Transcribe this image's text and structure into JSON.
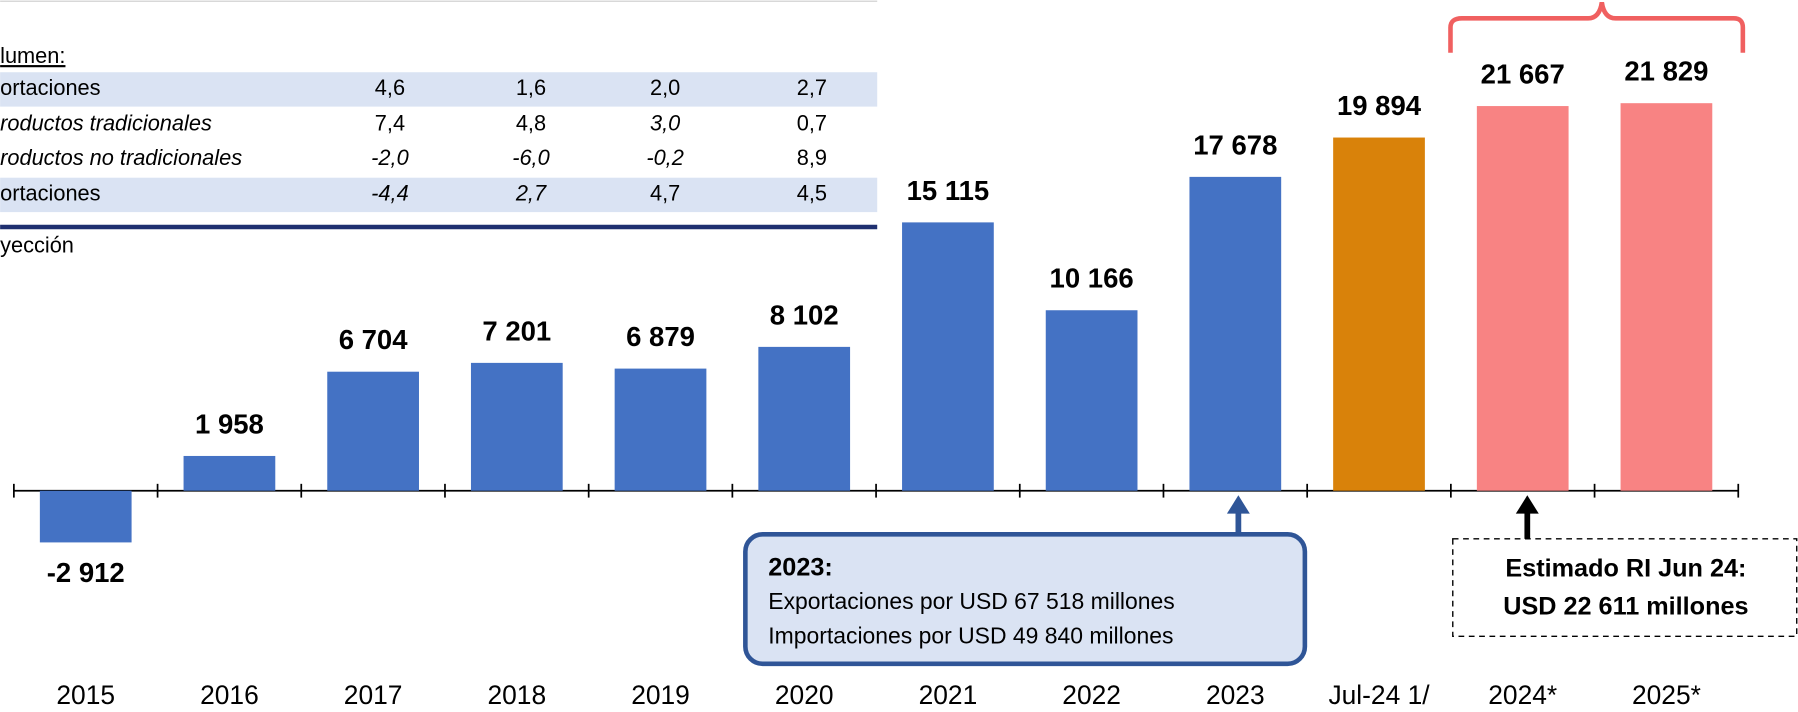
{
  "chart_data": {
    "type": "bar",
    "categories": [
      "2015",
      "2016",
      "2017",
      "2018",
      "2019",
      "2020",
      "2021",
      "2022",
      "2023",
      "Jul-24 1/",
      "2024*",
      "2025*"
    ],
    "values": [
      -2912,
      1958,
      6704,
      7201,
      6879,
      8102,
      15115,
      10166,
      17678,
      19894,
      21667,
      21829
    ],
    "value_labels": [
      "-2 912",
      "1 958",
      "6 704",
      "7 201",
      "6 879",
      "8 102",
      "15 115",
      "10 166",
      "17 678",
      "19 894",
      "21 667",
      "21 829"
    ],
    "colors": [
      "#4472c4",
      "#4472c4",
      "#4472c4",
      "#4472c4",
      "#4472c4",
      "#4472c4",
      "#4472c4",
      "#4472c4",
      "#4472c4",
      "#d9820a",
      "#f88383",
      "#f88383"
    ],
    "annotations": [
      {
        "title": "2023:",
        "lines": [
          "Exportaciones por USD 67 518 millones",
          "Importaciones por USD 49 840  millones"
        ]
      },
      {
        "lines": [
          "Estimado RI Jun 24:",
          "USD 22 611 millones"
        ]
      }
    ]
  },
  "table": {
    "heading": "lumen:",
    "rows": [
      [
        "ortaciones",
        "4,6",
        "1,6",
        "2,0",
        "2,7"
      ],
      [
        "roductos tradicionales",
        "7,4",
        "4,8",
        "3,0",
        "0,7"
      ],
      [
        "roductos no tradicionales",
        "-2,0",
        "-6,0",
        "-0,2",
        "8,9"
      ],
      [
        "ortaciones",
        "-4,4",
        "2,7",
        "4,7",
        "4,5"
      ]
    ],
    "note": "yección"
  }
}
